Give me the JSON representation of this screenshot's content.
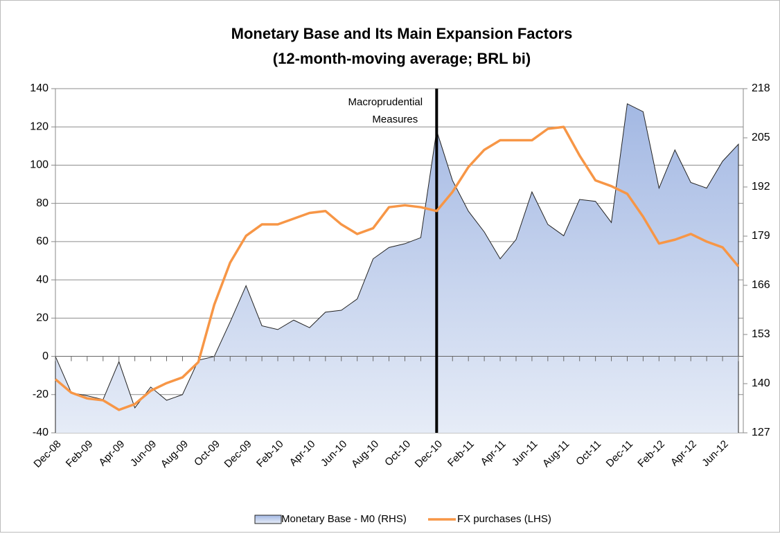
{
  "chart_data": {
    "type": "area-line",
    "title": "Monetary Base and Its Main Expansion Factors",
    "subtitle": "(12-month-moving average; BRL bi)",
    "categories": [
      "Dec-08",
      null,
      "Feb-09",
      null,
      "Apr-09",
      null,
      "Jun-09",
      null,
      "Aug-09",
      null,
      "Oct-09",
      null,
      "Dec-09",
      null,
      "Feb-10",
      null,
      "Apr-10",
      null,
      "Jun-10",
      null,
      "Aug-10",
      null,
      "Oct-10",
      null,
      "Dec-10",
      null,
      "Feb-11",
      null,
      "Apr-11",
      null,
      "Jun-11",
      null,
      "Aug-11",
      null,
      "Oct-11",
      null,
      "Dec-11",
      null,
      "Feb-12",
      null,
      "Apr-12",
      null,
      "Jun-12",
      null
    ],
    "series": [
      {
        "name": "Monetary Base - M0 (RHS)",
        "color": "#a3b8e3",
        "axis": "y2",
        "kind": "area",
        "values": [
          147.2,
          137.6,
          136.8,
          135.8,
          145.8,
          133.6,
          139.1,
          135.6,
          137.1,
          146.2,
          147.2,
          156.3,
          165.9,
          155.3,
          154.3,
          156.8,
          154.8,
          158.9,
          159.4,
          162.4,
          173.0,
          176.0,
          177.0,
          178.6,
          206.9,
          193.7,
          185.6,
          180.1,
          173.0,
          178.1,
          190.7,
          182.1,
          179.1,
          188.7,
          188.2,
          182.6,
          214.0,
          211.9,
          191.7,
          201.8,
          193.2,
          191.7,
          198.8,
          203.3
        ]
      },
      {
        "name": "FX purchases (LHS)",
        "color": "#f79646",
        "axis": "y",
        "kind": "line",
        "values": [
          -12,
          -19,
          -22,
          -23,
          -28,
          -25,
          -18,
          -14,
          -11,
          -3,
          27,
          49,
          63,
          69,
          69,
          72,
          75,
          76,
          69,
          64,
          67,
          78,
          79,
          78,
          76,
          86,
          99,
          108,
          113,
          113,
          113,
          119,
          120,
          105,
          92,
          89,
          85,
          73,
          59,
          61,
          64,
          60,
          57,
          47
        ]
      }
    ],
    "ylim": [
      -40,
      140
    ],
    "yticks": [
      -40,
      -20,
      0,
      20,
      40,
      60,
      80,
      100,
      120,
      140
    ],
    "y2lim": [
      127,
      218
    ],
    "y2ticks": [
      127,
      140,
      153,
      166,
      179,
      192,
      205,
      218
    ],
    "grid": true,
    "legend": "bottom",
    "annotation": {
      "text": [
        "Macroprudential",
        "Measures"
      ],
      "x": "Dec-10"
    }
  }
}
